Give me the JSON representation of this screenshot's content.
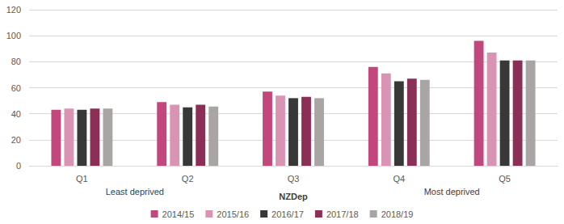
{
  "chart_data": {
    "type": "bar",
    "categories": [
      "Q1",
      "Q2",
      "Q3",
      "Q4",
      "Q5"
    ],
    "xlabel": "NZDep",
    "annotations": [
      "Least deprived",
      "Most deprived"
    ],
    "series": [
      {
        "name": "2014/15",
        "color": "#c2477d",
        "values": [
          43,
          49,
          57,
          76,
          96
        ]
      },
      {
        "name": "2015/16",
        "color": "#d993b3",
        "values": [
          44,
          47,
          54,
          71,
          87
        ]
      },
      {
        "name": "2016/17",
        "color": "#383838",
        "values": [
          43,
          45,
          52,
          65,
          81
        ]
      },
      {
        "name": "2017/18",
        "color": "#8c2f57",
        "values": [
          44,
          47,
          53,
          67,
          81
        ]
      },
      {
        "name": "2018/19",
        "color": "#aaa5a5",
        "values": [
          44,
          45.5,
          52,
          66,
          81
        ]
      }
    ],
    "ylim": [
      0,
      120
    ],
    "yticks": [
      0,
      20,
      40,
      60,
      80,
      100,
      120
    ],
    "grid": true,
    "legend": "bottom"
  }
}
